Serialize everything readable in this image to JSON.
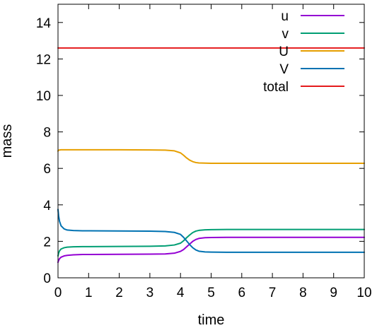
{
  "chart_data": {
    "type": "line",
    "title": "",
    "xlabel": "time",
    "ylabel": "mass",
    "xlim": [
      0,
      10
    ],
    "ylim": [
      0,
      15
    ],
    "x_ticks": [
      0,
      1,
      2,
      3,
      4,
      5,
      6,
      7,
      8,
      9,
      10
    ],
    "y_ticks": [
      0,
      2,
      4,
      6,
      8,
      10,
      12,
      14
    ],
    "grid": false,
    "legend_position": "top-right",
    "series": [
      {
        "name": "u",
        "color": "#9400d3",
        "x": [
          0,
          0.02,
          0.05,
          0.1,
          0.2,
          0.3,
          0.5,
          0.8,
          1,
          2,
          3,
          3.5,
          3.8,
          4,
          4.1,
          4.2,
          4.3,
          4.4,
          4.5,
          4.6,
          4.8,
          5,
          5.5,
          6,
          7,
          8,
          9,
          10
        ],
        "y": [
          0.85,
          0.95,
          1.05,
          1.13,
          1.2,
          1.23,
          1.26,
          1.28,
          1.28,
          1.29,
          1.3,
          1.31,
          1.35,
          1.45,
          1.55,
          1.7,
          1.85,
          2.0,
          2.1,
          2.16,
          2.2,
          2.21,
          2.22,
          2.22,
          2.22,
          2.22,
          2.22,
          2.22
        ]
      },
      {
        "name": "v",
        "color": "#009e73",
        "x": [
          0,
          0.02,
          0.05,
          0.1,
          0.2,
          0.3,
          0.5,
          0.8,
          1,
          2,
          3,
          3.5,
          3.8,
          4,
          4.1,
          4.2,
          4.3,
          4.4,
          4.5,
          4.6,
          4.8,
          5,
          5.5,
          6,
          7,
          8,
          9,
          10
        ],
        "y": [
          1.2,
          1.35,
          1.48,
          1.58,
          1.65,
          1.68,
          1.7,
          1.71,
          1.71,
          1.72,
          1.73,
          1.75,
          1.8,
          1.9,
          2.03,
          2.2,
          2.35,
          2.48,
          2.56,
          2.6,
          2.63,
          2.64,
          2.65,
          2.65,
          2.65,
          2.65,
          2.65,
          2.65
        ]
      },
      {
        "name": "U",
        "color": "#e69f00",
        "x": [
          0,
          0.02,
          0.1,
          0.5,
          1,
          2,
          3,
          3.5,
          3.8,
          4,
          4.1,
          4.2,
          4.3,
          4.4,
          4.5,
          4.6,
          4.8,
          5,
          6,
          7,
          8,
          9,
          10
        ],
        "y": [
          6.95,
          7.0,
          7.02,
          7.02,
          7.02,
          7.02,
          7.01,
          7.0,
          6.96,
          6.85,
          6.72,
          6.57,
          6.45,
          6.37,
          6.32,
          6.3,
          6.29,
          6.28,
          6.28,
          6.28,
          6.28,
          6.28,
          6.28
        ]
      },
      {
        "name": "V",
        "color": "#0072b2",
        "x": [
          0,
          0.02,
          0.05,
          0.1,
          0.2,
          0.3,
          0.5,
          0.8,
          1,
          2,
          3,
          3.5,
          3.8,
          4,
          4.1,
          4.2,
          4.3,
          4.4,
          4.5,
          4.6,
          4.8,
          5,
          5.5,
          6,
          7,
          8,
          9,
          10
        ],
        "y": [
          3.75,
          3.4,
          3.1,
          2.85,
          2.68,
          2.62,
          2.59,
          2.58,
          2.58,
          2.57,
          2.56,
          2.54,
          2.49,
          2.38,
          2.22,
          2.02,
          1.82,
          1.65,
          1.53,
          1.46,
          1.42,
          1.41,
          1.4,
          1.4,
          1.4,
          1.4,
          1.4,
          1.4
        ]
      },
      {
        "name": "total",
        "color": "#e41a1c",
        "x": [
          0,
          10
        ],
        "y": [
          12.6,
          12.6
        ]
      }
    ]
  }
}
